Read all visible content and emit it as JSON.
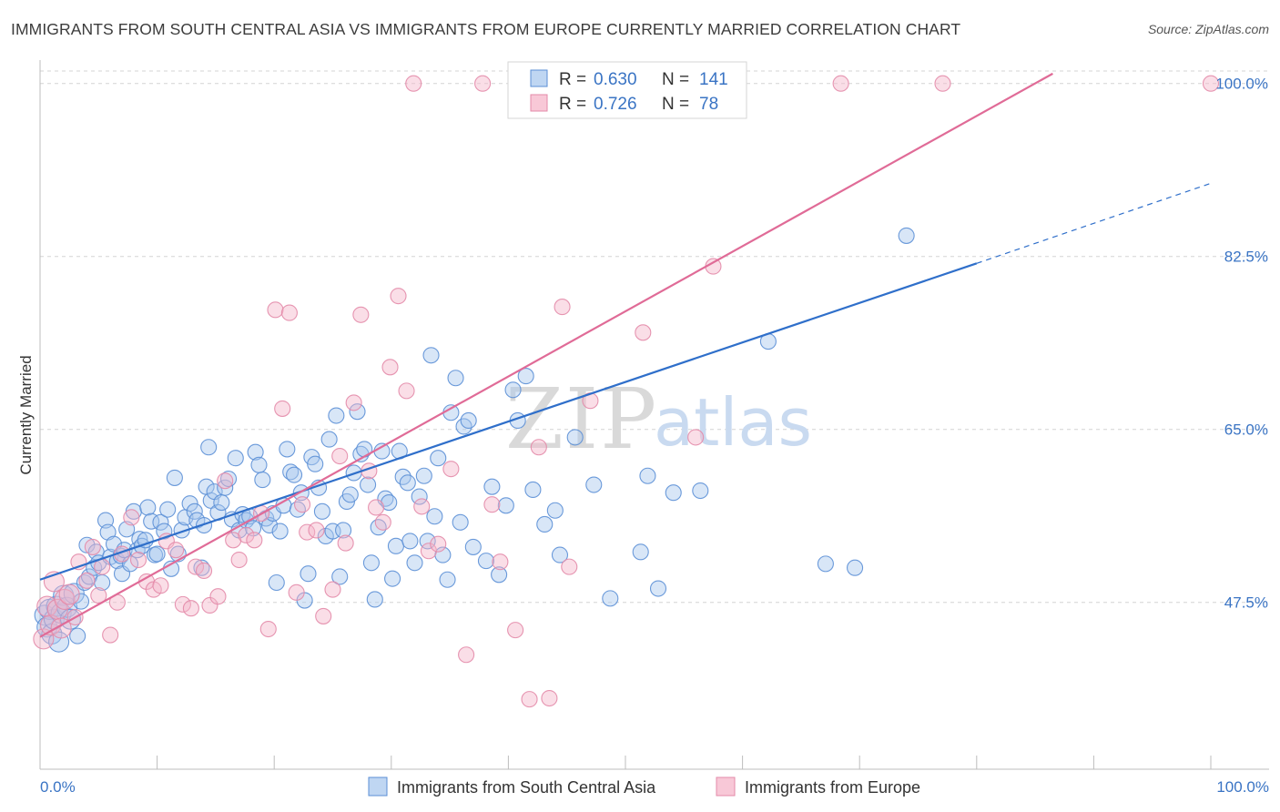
{
  "title": "IMMIGRANTS FROM SOUTH CENTRAL ASIA VS IMMIGRANTS FROM EUROPE CURRENTLY MARRIED CORRELATION CHART",
  "source": "Source: ZipAtlas.com",
  "watermark": {
    "zip": "ZIP",
    "atlas": "atlas"
  },
  "legend": {
    "r_label": "R =",
    "n_label": "N =",
    "rows": [
      {
        "r": "0.630",
        "n": "141"
      },
      {
        "r": "0.726",
        "n": "78"
      }
    ]
  },
  "colors": {
    "blue_fill": "#a9c8ee",
    "blue_stroke": "#5b8fd6",
    "blue_line": "#2f6fca",
    "pink_fill": "#f5b6c9",
    "pink_stroke": "#e38aa8",
    "pink_line": "#e06b97",
    "grid": "#d4d4d4",
    "tick_label": "#3a74c4"
  },
  "chart_data": {
    "type": "scatter",
    "title": "IMMIGRANTS FROM SOUTH CENTRAL ASIA VS IMMIGRANTS FROM EUROPE CURRENTLY MARRIED CORRELATION CHART",
    "xlabel": "",
    "ylabel": "Currently Married",
    "xlim": [
      0,
      100
    ],
    "ylim": [
      32,
      102
    ],
    "x_tick_labels": [
      "0.0%",
      "100.0%"
    ],
    "y_ticks": [
      47.5,
      65.0,
      82.5,
      100.0
    ],
    "y_tick_labels": [
      "47.5%",
      "65.0%",
      "82.5%",
      "100.0%"
    ],
    "grid": "horizontal dashed",
    "legend_position": "top-center",
    "series": [
      {
        "name": "Immigrants from South Central Asia",
        "r": 0.63,
        "n": 141,
        "trend": {
          "x0": 0,
          "y0": 49.8,
          "x1": 80,
          "y1": 81.8,
          "dash_to_x": 100,
          "dash_to_y": 89.9
        },
        "points": [
          [
            0.4,
            46.2
          ],
          [
            0.6,
            45.0
          ],
          [
            0.8,
            46.8
          ],
          [
            1.0,
            44.3
          ],
          [
            1.2,
            45.8
          ],
          [
            1.4,
            47.1
          ],
          [
            1.6,
            43.5
          ],
          [
            1.8,
            46.4
          ],
          [
            2.0,
            48.2
          ],
          [
            2.3,
            47.0
          ],
          [
            2.6,
            45.8
          ],
          [
            2.9,
            48.4
          ],
          [
            3.2,
            44.1
          ],
          [
            3.5,
            47.6
          ],
          [
            3.8,
            49.5
          ],
          [
            4.0,
            53.3
          ],
          [
            4.2,
            50.1
          ],
          [
            4.6,
            51.0
          ],
          [
            4.8,
            52.6
          ],
          [
            5.0,
            51.5
          ],
          [
            5.3,
            49.5
          ],
          [
            5.6,
            55.8
          ],
          [
            5.8,
            54.6
          ],
          [
            6.0,
            52.1
          ],
          [
            6.3,
            53.4
          ],
          [
            6.6,
            51.7
          ],
          [
            6.9,
            52.2
          ],
          [
            7.0,
            50.4
          ],
          [
            7.2,
            52.8
          ],
          [
            7.4,
            54.9
          ],
          [
            7.7,
            51.4
          ],
          [
            8.0,
            56.7
          ],
          [
            8.3,
            52.8
          ],
          [
            8.5,
            53.9
          ],
          [
            8.7,
            53.2
          ],
          [
            9.0,
            53.8
          ],
          [
            9.2,
            57.1
          ],
          [
            9.5,
            55.7
          ],
          [
            9.8,
            52.3
          ],
          [
            10.0,
            52.4
          ],
          [
            10.3,
            55.6
          ],
          [
            10.6,
            54.7
          ],
          [
            10.9,
            56.9
          ],
          [
            11.2,
            50.9
          ],
          [
            11.5,
            60.1
          ],
          [
            11.8,
            52.4
          ],
          [
            12.1,
            54.8
          ],
          [
            12.4,
            56.1
          ],
          [
            12.8,
            57.5
          ],
          [
            13.2,
            56.7
          ],
          [
            13.4,
            55.8
          ],
          [
            13.8,
            51.0
          ],
          [
            14.0,
            55.3
          ],
          [
            14.2,
            59.2
          ],
          [
            14.4,
            63.2
          ],
          [
            14.6,
            57.8
          ],
          [
            14.9,
            58.7
          ],
          [
            15.2,
            56.6
          ],
          [
            15.5,
            57.6
          ],
          [
            15.8,
            59.1
          ],
          [
            16.1,
            60.0
          ],
          [
            16.4,
            55.9
          ],
          [
            16.7,
            62.1
          ],
          [
            17.0,
            54.8
          ],
          [
            17.3,
            56.4
          ],
          [
            17.6,
            55.8
          ],
          [
            17.9,
            56.2
          ],
          [
            18.2,
            55.0
          ],
          [
            18.4,
            62.7
          ],
          [
            18.7,
            61.4
          ],
          [
            19.0,
            59.9
          ],
          [
            19.3,
            56.0
          ],
          [
            19.6,
            55.3
          ],
          [
            19.9,
            56.5
          ],
          [
            20.2,
            49.5
          ],
          [
            20.5,
            54.7
          ],
          [
            20.8,
            57.3
          ],
          [
            21.1,
            63.0
          ],
          [
            21.4,
            60.7
          ],
          [
            21.7,
            60.4
          ],
          [
            22.0,
            56.9
          ],
          [
            22.3,
            58.6
          ],
          [
            22.6,
            47.7
          ],
          [
            22.9,
            50.4
          ],
          [
            23.2,
            62.2
          ],
          [
            23.5,
            61.5
          ],
          [
            23.8,
            59.1
          ],
          [
            24.1,
            56.7
          ],
          [
            24.4,
            54.2
          ],
          [
            24.7,
            64.0
          ],
          [
            25.0,
            54.7
          ],
          [
            25.3,
            66.4
          ],
          [
            25.6,
            50.1
          ],
          [
            25.9,
            54.8
          ],
          [
            26.2,
            57.7
          ],
          [
            26.5,
            58.4
          ],
          [
            26.8,
            60.6
          ],
          [
            27.1,
            66.8
          ],
          [
            27.4,
            62.5
          ],
          [
            27.7,
            63.0
          ],
          [
            28.0,
            59.4
          ],
          [
            28.3,
            51.5
          ],
          [
            28.6,
            47.8
          ],
          [
            28.9,
            55.1
          ],
          [
            29.2,
            62.8
          ],
          [
            29.5,
            58.0
          ],
          [
            29.8,
            57.6
          ],
          [
            30.1,
            49.9
          ],
          [
            30.4,
            53.2
          ],
          [
            30.7,
            62.8
          ],
          [
            31.0,
            60.2
          ],
          [
            31.4,
            59.6
          ],
          [
            31.6,
            53.7
          ],
          [
            32.0,
            51.5
          ],
          [
            32.4,
            58.2
          ],
          [
            32.8,
            60.3
          ],
          [
            33.1,
            53.7
          ],
          [
            33.4,
            72.5
          ],
          [
            33.7,
            56.2
          ],
          [
            34.0,
            62.1
          ],
          [
            34.4,
            52.3
          ],
          [
            34.8,
            49.8
          ],
          [
            35.1,
            66.7
          ],
          [
            35.5,
            70.2
          ],
          [
            35.9,
            55.6
          ],
          [
            36.2,
            65.3
          ],
          [
            36.6,
            65.9
          ],
          [
            37.0,
            53.1
          ],
          [
            38.1,
            51.7
          ],
          [
            38.6,
            59.2
          ],
          [
            39.2,
            50.3
          ],
          [
            39.8,
            57.3
          ],
          [
            40.4,
            69.0
          ],
          [
            40.8,
            65.9
          ],
          [
            41.5,
            70.4
          ],
          [
            42.1,
            58.9
          ],
          [
            43.1,
            55.4
          ],
          [
            44.0,
            56.8
          ],
          [
            44.4,
            52.3
          ],
          [
            45.7,
            64.2
          ],
          [
            47.3,
            59.4
          ],
          [
            48.7,
            47.9
          ],
          [
            51.3,
            52.6
          ],
          [
            51.9,
            60.3
          ],
          [
            52.8,
            48.9
          ],
          [
            54.1,
            58.6
          ],
          [
            56.4,
            58.8
          ],
          [
            62.2,
            73.9
          ],
          [
            67.1,
            51.4
          ],
          [
            69.6,
            51.0
          ],
          [
            74.0,
            84.6
          ]
        ]
      },
      {
        "name": "Immigrants from Europe",
        "r": 0.726,
        "n": 78,
        "trend": {
          "x0": 0,
          "y0": 44.0,
          "x1": 86.5,
          "y1": 101.0
        },
        "points": [
          [
            0.3,
            43.8
          ],
          [
            0.6,
            47.1
          ],
          [
            0.9,
            45.2
          ],
          [
            1.2,
            49.6
          ],
          [
            1.5,
            46.8
          ],
          [
            1.8,
            44.9
          ],
          [
            2.1,
            47.8
          ],
          [
            2.5,
            48.3
          ],
          [
            3.0,
            46.0
          ],
          [
            3.3,
            51.6
          ],
          [
            4.0,
            49.7
          ],
          [
            4.5,
            53.1
          ],
          [
            5.0,
            48.2
          ],
          [
            5.3,
            51.1
          ],
          [
            6.0,
            44.2
          ],
          [
            6.6,
            47.5
          ],
          [
            7.0,
            52.4
          ],
          [
            7.8,
            56.1
          ],
          [
            8.4,
            51.8
          ],
          [
            9.1,
            49.6
          ],
          [
            9.7,
            48.8
          ],
          [
            10.3,
            49.2
          ],
          [
            10.8,
            53.7
          ],
          [
            11.6,
            52.8
          ],
          [
            12.2,
            47.3
          ],
          [
            12.9,
            46.9
          ],
          [
            13.3,
            51.1
          ],
          [
            14.0,
            50.7
          ],
          [
            14.5,
            47.2
          ],
          [
            15.2,
            48.1
          ],
          [
            15.8,
            59.8
          ],
          [
            16.5,
            53.8
          ],
          [
            17.0,
            51.8
          ],
          [
            17.6,
            54.3
          ],
          [
            18.3,
            53.8
          ],
          [
            18.9,
            56.5
          ],
          [
            19.5,
            44.8
          ],
          [
            20.1,
            77.1
          ],
          [
            20.7,
            67.1
          ],
          [
            21.3,
            76.8
          ],
          [
            21.9,
            48.5
          ],
          [
            22.4,
            57.4
          ],
          [
            22.8,
            54.6
          ],
          [
            23.6,
            54.8
          ],
          [
            24.2,
            46.1
          ],
          [
            25.0,
            48.8
          ],
          [
            25.6,
            62.3
          ],
          [
            26.1,
            53.5
          ],
          [
            26.8,
            67.7
          ],
          [
            27.4,
            76.6
          ],
          [
            28.1,
            60.8
          ],
          [
            28.7,
            57.1
          ],
          [
            29.3,
            55.6
          ],
          [
            29.9,
            71.3
          ],
          [
            30.6,
            78.5
          ],
          [
            31.3,
            68.9
          ],
          [
            31.9,
            100.0
          ],
          [
            32.6,
            57.2
          ],
          [
            33.2,
            52.7
          ],
          [
            34.0,
            53.4
          ],
          [
            35.1,
            61.0
          ],
          [
            36.4,
            42.2
          ],
          [
            37.8,
            100.0
          ],
          [
            38.6,
            57.4
          ],
          [
            39.3,
            51.6
          ],
          [
            40.6,
            44.7
          ],
          [
            41.8,
            37.7
          ],
          [
            42.6,
            63.2
          ],
          [
            43.5,
            37.8
          ],
          [
            44.6,
            77.4
          ],
          [
            45.2,
            51.1
          ],
          [
            47.0,
            67.9
          ],
          [
            51.5,
            74.8
          ],
          [
            56.0,
            64.2
          ],
          [
            57.5,
            81.5
          ],
          [
            68.4,
            100.0
          ],
          [
            77.1,
            100.0
          ],
          [
            100.0,
            100.0
          ]
        ]
      }
    ]
  },
  "bottom_legend": [
    {
      "label": "Immigrants from South Central Asia"
    },
    {
      "label": "Immigrants from Europe"
    }
  ]
}
